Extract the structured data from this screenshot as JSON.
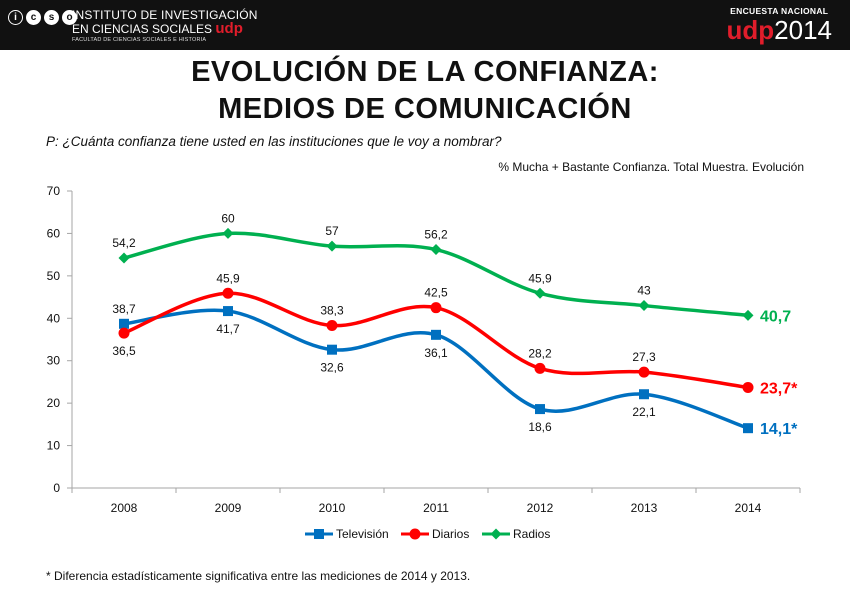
{
  "header": {
    "logo_letters": [
      "i",
      "c",
      "s",
      "o"
    ],
    "institute_line1": "INSTITUTO DE INVESTIGACIÓN",
    "institute_line2": "EN CIENCIAS SOCIALES",
    "institute_brand": "udp",
    "institute_line3": "FACULTAD DE CIENCIAS SOCIALES E HISTORIA",
    "survey_label": "ENCUESTA NACIONAL",
    "survey_brand": "udp",
    "survey_year": "2014"
  },
  "title_line1": "EVOLUCIÓN DE LA CONFIANZA:",
  "title_line2": "MEDIOS DE COMUNICACIÓN",
  "question": "P: ¿Cuánta confianza tiene usted en las instituciones que le voy a nombrar?",
  "measure_note": "% Mucha + Bastante Confianza. Total Muestra. Evolución",
  "footnote": "* Diferencia estadísticamente significativa entre las mediciones de 2014 y 2013.",
  "colors": {
    "television": "#0070c0",
    "diarios": "#ff0000",
    "radios": "#00b050",
    "axis": "#a6a6a6",
    "header_bg": "#111111",
    "brand_red": "#e11d2b"
  },
  "chart_data": {
    "type": "line",
    "title": "EVOLUCIÓN DE LA CONFIANZA: MEDIOS DE COMUNICACIÓN",
    "xlabel": "",
    "ylabel": "",
    "ylim": [
      0,
      70
    ],
    "yticks": [
      0,
      10,
      20,
      30,
      40,
      50,
      60,
      70
    ],
    "categories": [
      "2008",
      "2009",
      "2010",
      "2011",
      "2012",
      "2013",
      "2014"
    ],
    "legend_position": "bottom",
    "series": [
      {
        "name": "Televisión",
        "key": "television",
        "marker": "square",
        "values": [
          38.7,
          41.7,
          32.6,
          36.1,
          18.6,
          22.1,
          14.1
        ],
        "labels": [
          "38,7",
          "41,7",
          "32,6",
          "36,1",
          "18,6",
          "22,1",
          ""
        ],
        "final_label": "14,1*"
      },
      {
        "name": "Diarios",
        "key": "diarios",
        "marker": "circle",
        "values": [
          36.5,
          45.9,
          38.3,
          42.5,
          28.2,
          27.3,
          23.7
        ],
        "labels": [
          "36,5",
          "45,9",
          "38,3",
          "42,5",
          "28,2",
          "27,3",
          ""
        ],
        "final_label": "23,7*"
      },
      {
        "name": "Radios",
        "key": "radios",
        "marker": "diamond",
        "values": [
          54.2,
          60,
          57,
          56.2,
          45.9,
          43,
          40.7
        ],
        "labels": [
          "54,2",
          "60",
          "57",
          "56,2",
          "45,9",
          "43",
          ""
        ],
        "final_label": "40,7"
      }
    ]
  }
}
